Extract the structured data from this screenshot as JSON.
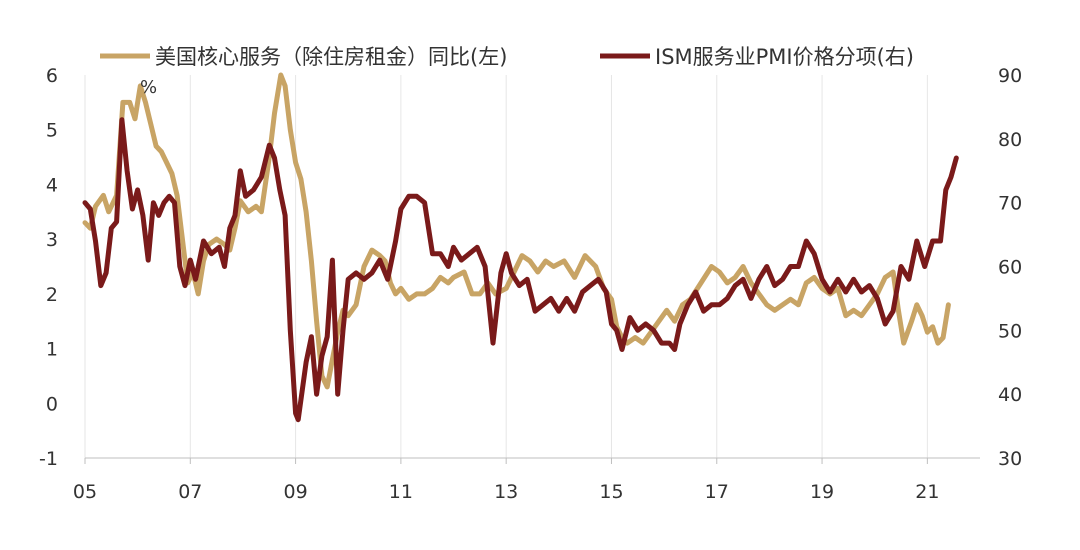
{
  "chart_data": {
    "type": "line",
    "title": "",
    "left_axis": {
      "label": "",
      "unit_label": "%",
      "range": [
        -1,
        6
      ],
      "ticks": [
        "-1",
        "0",
        "1",
        "2",
        "3",
        "4",
        "5",
        "6"
      ]
    },
    "right_axis": {
      "label": "",
      "range": [
        30,
        90
      ],
      "ticks": [
        "30",
        "40",
        "50",
        "60",
        "70",
        "80",
        "90"
      ]
    },
    "x_axis": {
      "label": "",
      "range": [
        2005.0,
        2022.0
      ],
      "ticks": [
        {
          "value": 2005,
          "label": "05"
        },
        {
          "value": 2007,
          "label": "07"
        },
        {
          "value": 2009,
          "label": "09"
        },
        {
          "value": 2011,
          "label": "11"
        },
        {
          "value": 2013,
          "label": "13"
        },
        {
          "value": 2015,
          "label": "15"
        },
        {
          "value": 2017,
          "label": "17"
        },
        {
          "value": 2019,
          "label": "19"
        },
        {
          "value": 2021,
          "label": "21"
        }
      ]
    },
    "grid": "vertical",
    "legend_position": "top",
    "series": [
      {
        "name": "美国核心服务（除住房租金）同比(左)",
        "axis": "left",
        "color": "#C8A465",
        "points": [
          [
            2005.0,
            3.3
          ],
          [
            2005.1,
            3.2
          ],
          [
            2005.2,
            3.6
          ],
          [
            2005.35,
            3.8
          ],
          [
            2005.45,
            3.5
          ],
          [
            2005.6,
            3.8
          ],
          [
            2005.72,
            5.5
          ],
          [
            2005.85,
            5.5
          ],
          [
            2005.95,
            5.2
          ],
          [
            2006.05,
            5.8
          ],
          [
            2006.15,
            5.5
          ],
          [
            2006.25,
            5.1
          ],
          [
            2006.35,
            4.7
          ],
          [
            2006.45,
            4.6
          ],
          [
            2006.55,
            4.4
          ],
          [
            2006.65,
            4.2
          ],
          [
            2006.75,
            3.8
          ],
          [
            2006.85,
            3.0
          ],
          [
            2006.95,
            2.2
          ],
          [
            2007.05,
            2.4
          ],
          [
            2007.15,
            2.0
          ],
          [
            2007.25,
            2.6
          ],
          [
            2007.35,
            2.9
          ],
          [
            2007.5,
            3.0
          ],
          [
            2007.65,
            2.9
          ],
          [
            2007.75,
            2.8
          ],
          [
            2007.85,
            3.2
          ],
          [
            2007.95,
            3.7
          ],
          [
            2008.1,
            3.5
          ],
          [
            2008.25,
            3.6
          ],
          [
            2008.35,
            3.5
          ],
          [
            2008.5,
            4.5
          ],
          [
            2008.6,
            5.3
          ],
          [
            2008.72,
            6.0
          ],
          [
            2008.8,
            5.8
          ],
          [
            2008.9,
            5.0
          ],
          [
            2009.0,
            4.4
          ],
          [
            2009.1,
            4.1
          ],
          [
            2009.2,
            3.5
          ],
          [
            2009.3,
            2.6
          ],
          [
            2009.4,
            1.5
          ],
          [
            2009.5,
            0.5
          ],
          [
            2009.6,
            0.3
          ],
          [
            2009.7,
            0.8
          ],
          [
            2009.8,
            1.3
          ],
          [
            2009.9,
            1.7
          ],
          [
            2010.0,
            1.6
          ],
          [
            2010.15,
            1.8
          ],
          [
            2010.3,
            2.5
          ],
          [
            2010.45,
            2.8
          ],
          [
            2010.6,
            2.7
          ],
          [
            2010.7,
            2.6
          ],
          [
            2010.8,
            2.2
          ],
          [
            2010.9,
            2.0
          ],
          [
            2011.0,
            2.1
          ],
          [
            2011.15,
            1.9
          ],
          [
            2011.3,
            2.0
          ],
          [
            2011.45,
            2.0
          ],
          [
            2011.6,
            2.1
          ],
          [
            2011.75,
            2.3
          ],
          [
            2011.9,
            2.2
          ],
          [
            2012.0,
            2.3
          ],
          [
            2012.2,
            2.4
          ],
          [
            2012.35,
            2.0
          ],
          [
            2012.5,
            2.0
          ],
          [
            2012.65,
            2.2
          ],
          [
            2012.8,
            2.0
          ],
          [
            2013.0,
            2.1
          ],
          [
            2013.15,
            2.4
          ],
          [
            2013.3,
            2.7
          ],
          [
            2013.45,
            2.6
          ],
          [
            2013.6,
            2.4
          ],
          [
            2013.75,
            2.6
          ],
          [
            2013.9,
            2.5
          ],
          [
            2014.1,
            2.6
          ],
          [
            2014.3,
            2.3
          ],
          [
            2014.5,
            2.7
          ],
          [
            2014.7,
            2.5
          ],
          [
            2014.85,
            2.1
          ],
          [
            2015.0,
            1.9
          ],
          [
            2015.1,
            1.4
          ],
          [
            2015.2,
            1.2
          ],
          [
            2015.3,
            1.1
          ],
          [
            2015.45,
            1.2
          ],
          [
            2015.6,
            1.1
          ],
          [
            2015.75,
            1.3
          ],
          [
            2015.9,
            1.5
          ],
          [
            2016.05,
            1.7
          ],
          [
            2016.2,
            1.5
          ],
          [
            2016.35,
            1.8
          ],
          [
            2016.5,
            1.9
          ],
          [
            2016.7,
            2.2
          ],
          [
            2016.9,
            2.5
          ],
          [
            2017.05,
            2.4
          ],
          [
            2017.2,
            2.2
          ],
          [
            2017.35,
            2.3
          ],
          [
            2017.5,
            2.5
          ],
          [
            2017.65,
            2.2
          ],
          [
            2017.8,
            2.0
          ],
          [
            2017.95,
            1.8
          ],
          [
            2018.1,
            1.7
          ],
          [
            2018.25,
            1.8
          ],
          [
            2018.4,
            1.9
          ],
          [
            2018.55,
            1.8
          ],
          [
            2018.7,
            2.2
          ],
          [
            2018.85,
            2.3
          ],
          [
            2019.0,
            2.1
          ],
          [
            2019.15,
            2.0
          ],
          [
            2019.3,
            2.1
          ],
          [
            2019.45,
            1.6
          ],
          [
            2019.6,
            1.7
          ],
          [
            2019.75,
            1.6
          ],
          [
            2019.9,
            1.8
          ],
          [
            2020.05,
            2.0
          ],
          [
            2020.2,
            2.3
          ],
          [
            2020.35,
            2.4
          ],
          [
            2020.45,
            1.7
          ],
          [
            2020.55,
            1.1
          ],
          [
            2020.7,
            1.5
          ],
          [
            2020.8,
            1.8
          ],
          [
            2020.9,
            1.6
          ],
          [
            2021.0,
            1.3
          ],
          [
            2021.1,
            1.4
          ],
          [
            2021.2,
            1.1
          ],
          [
            2021.3,
            1.2
          ],
          [
            2021.4,
            1.8
          ]
        ]
      },
      {
        "name": "ISM服务业PMI价格分项(右)",
        "axis": "right",
        "color": "#7A1A1A",
        "points": [
          [
            2005.0,
            70
          ],
          [
            2005.1,
            69
          ],
          [
            2005.2,
            64
          ],
          [
            2005.3,
            57
          ],
          [
            2005.4,
            59
          ],
          [
            2005.5,
            66
          ],
          [
            2005.6,
            67
          ],
          [
            2005.7,
            83
          ],
          [
            2005.8,
            75
          ],
          [
            2005.9,
            69
          ],
          [
            2006.0,
            72
          ],
          [
            2006.1,
            68
          ],
          [
            2006.2,
            61
          ],
          [
            2006.3,
            70
          ],
          [
            2006.4,
            68
          ],
          [
            2006.5,
            70
          ],
          [
            2006.6,
            71
          ],
          [
            2006.7,
            70
          ],
          [
            2006.8,
            60
          ],
          [
            2006.9,
            57
          ],
          [
            2007.0,
            61
          ],
          [
            2007.1,
            58
          ],
          [
            2007.25,
            64
          ],
          [
            2007.4,
            62
          ],
          [
            2007.55,
            63
          ],
          [
            2007.65,
            60
          ],
          [
            2007.75,
            66
          ],
          [
            2007.85,
            68
          ],
          [
            2007.95,
            75
          ],
          [
            2008.05,
            71
          ],
          [
            2008.2,
            72
          ],
          [
            2008.35,
            74
          ],
          [
            2008.5,
            79
          ],
          [
            2008.6,
            77
          ],
          [
            2008.7,
            72
          ],
          [
            2008.8,
            68
          ],
          [
            2008.9,
            50
          ],
          [
            2009.0,
            37
          ],
          [
            2009.05,
            36
          ],
          [
            2009.2,
            45
          ],
          [
            2009.3,
            49
          ],
          [
            2009.4,
            40
          ],
          [
            2009.5,
            46
          ],
          [
            2009.6,
            49
          ],
          [
            2009.7,
            61
          ],
          [
            2009.8,
            40
          ],
          [
            2009.9,
            50
          ],
          [
            2010.0,
            58
          ],
          [
            2010.15,
            59
          ],
          [
            2010.3,
            58
          ],
          [
            2010.45,
            59
          ],
          [
            2010.6,
            61
          ],
          [
            2010.75,
            58
          ],
          [
            2010.9,
            64
          ],
          [
            2011.0,
            69
          ],
          [
            2011.15,
            71
          ],
          [
            2011.3,
            71
          ],
          [
            2011.45,
            70
          ],
          [
            2011.6,
            62
          ],
          [
            2011.75,
            62
          ],
          [
            2011.9,
            60
          ],
          [
            2012.0,
            63
          ],
          [
            2012.15,
            61
          ],
          [
            2012.3,
            62
          ],
          [
            2012.45,
            63
          ],
          [
            2012.6,
            60
          ],
          [
            2012.75,
            48
          ],
          [
            2012.9,
            59
          ],
          [
            2013.0,
            62
          ],
          [
            2013.1,
            59
          ],
          [
            2013.25,
            57
          ],
          [
            2013.4,
            58
          ],
          [
            2013.55,
            53
          ],
          [
            2013.7,
            54
          ],
          [
            2013.85,
            55
          ],
          [
            2014.0,
            53
          ],
          [
            2014.15,
            55
          ],
          [
            2014.3,
            53
          ],
          [
            2014.45,
            56
          ],
          [
            2014.6,
            57
          ],
          [
            2014.75,
            58
          ],
          [
            2014.9,
            56
          ],
          [
            2015.0,
            51
          ],
          [
            2015.1,
            50
          ],
          [
            2015.2,
            47
          ],
          [
            2015.35,
            52
          ],
          [
            2015.5,
            50
          ],
          [
            2015.65,
            51
          ],
          [
            2015.8,
            50
          ],
          [
            2015.95,
            48
          ],
          [
            2016.1,
            48
          ],
          [
            2016.2,
            47
          ],
          [
            2016.3,
            51
          ],
          [
            2016.45,
            54
          ],
          [
            2016.6,
            56
          ],
          [
            2016.75,
            53
          ],
          [
            2016.9,
            54
          ],
          [
            2017.05,
            54
          ],
          [
            2017.2,
            55
          ],
          [
            2017.35,
            57
          ],
          [
            2017.5,
            58
          ],
          [
            2017.65,
            55
          ],
          [
            2017.8,
            58
          ],
          [
            2017.95,
            60
          ],
          [
            2018.1,
            57
          ],
          [
            2018.25,
            58
          ],
          [
            2018.4,
            60
          ],
          [
            2018.55,
            60
          ],
          [
            2018.7,
            64
          ],
          [
            2018.85,
            62
          ],
          [
            2019.0,
            58
          ],
          [
            2019.15,
            56
          ],
          [
            2019.3,
            58
          ],
          [
            2019.45,
            56
          ],
          [
            2019.6,
            58
          ],
          [
            2019.75,
            56
          ],
          [
            2019.9,
            57
          ],
          [
            2020.05,
            55
          ],
          [
            2020.2,
            51
          ],
          [
            2020.35,
            53
          ],
          [
            2020.5,
            60
          ],
          [
            2020.65,
            58
          ],
          [
            2020.8,
            64
          ],
          [
            2020.95,
            60
          ],
          [
            2021.1,
            64
          ],
          [
            2021.25,
            64
          ],
          [
            2021.35,
            72
          ],
          [
            2021.45,
            74
          ],
          [
            2021.55,
            77
          ]
        ]
      }
    ]
  }
}
